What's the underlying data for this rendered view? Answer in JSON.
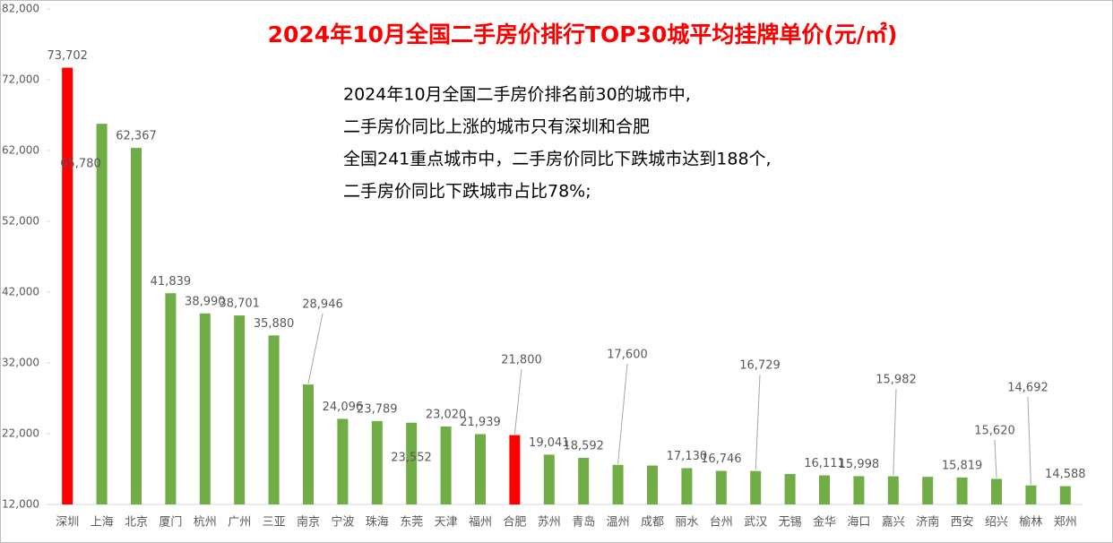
{
  "chart_data": {
    "type": "bar",
    "title": "2024年10月全国二手房价排行TOP30城平均挂牌单价(元/㎡)",
    "annotation": [
      "2024年10月全国二手房价排名前30的城市中,",
      "二手房价同比上涨的城市只有深圳和合肥",
      "全国241重点城市中，二手房价同比下跌城市达到188个,",
      "二手房价同比下跌城市占比78%;"
    ],
    "categories": [
      "深圳",
      "上海",
      "北京",
      "厦门",
      "杭州",
      "广州",
      "三亚",
      "南京",
      "宁波",
      "珠海",
      "东莞",
      "天津",
      "福州",
      "合肥",
      "苏州",
      "青岛",
      "温州",
      "成都",
      "丽水",
      "台州",
      "武汉",
      "无锡",
      "金华",
      "海口",
      "嘉兴",
      "济南",
      "西安",
      "绍兴",
      "榆林",
      "郑州"
    ],
    "values": [
      73702,
      65780,
      62367,
      41839,
      38990,
      38701,
      35880,
      28946,
      24096,
      23789,
      23552,
      23020,
      21939,
      21800,
      19041,
      18592,
      17600,
      17500,
      17130,
      16746,
      16729,
      16300,
      16111,
      15998,
      15982,
      15900,
      15819,
      15620,
      14692,
      14588
    ],
    "value_labels": [
      "73,702",
      "65,780",
      "62,367",
      "41,839",
      "38,990",
      "38,701",
      "35,880",
      "28,946",
      "24,096",
      "23,789",
      "23,552",
      "23,020",
      "21,939",
      "21,800",
      "19,041",
      "18,592",
      "17,600",
      null,
      "17,130",
      "16,746",
      "16,729",
      null,
      "16,111",
      "15,998",
      "15,982",
      null,
      "15,819",
      "15,620",
      "14,692",
      "14,588"
    ],
    "colors": [
      "#ff0000",
      "#70ad47",
      "#70ad47",
      "#70ad47",
      "#70ad47",
      "#70ad47",
      "#70ad47",
      "#70ad47",
      "#70ad47",
      "#70ad47",
      "#70ad47",
      "#70ad47",
      "#70ad47",
      "#ff0000",
      "#70ad47",
      "#70ad47",
      "#70ad47",
      "#70ad47",
      "#70ad47",
      "#70ad47",
      "#70ad47",
      "#70ad47",
      "#70ad47",
      "#70ad47",
      "#70ad47",
      "#70ad47",
      "#70ad47",
      "#70ad47",
      "#70ad47",
      "#70ad47"
    ],
    "ylim": [
      12000,
      82000
    ],
    "yticks": [
      {
        "value": 12000,
        "label": "12,000"
      },
      {
        "value": 22000,
        "label": "22,000"
      },
      {
        "value": 32000,
        "label": "32,000"
      },
      {
        "value": 42000,
        "label": "42,000"
      },
      {
        "value": 52000,
        "label": "52,000"
      },
      {
        "value": 62000,
        "label": "62,000"
      },
      {
        "value": 72000,
        "label": "72,000"
      },
      {
        "value": 82000,
        "label": "82,000"
      }
    ]
  }
}
